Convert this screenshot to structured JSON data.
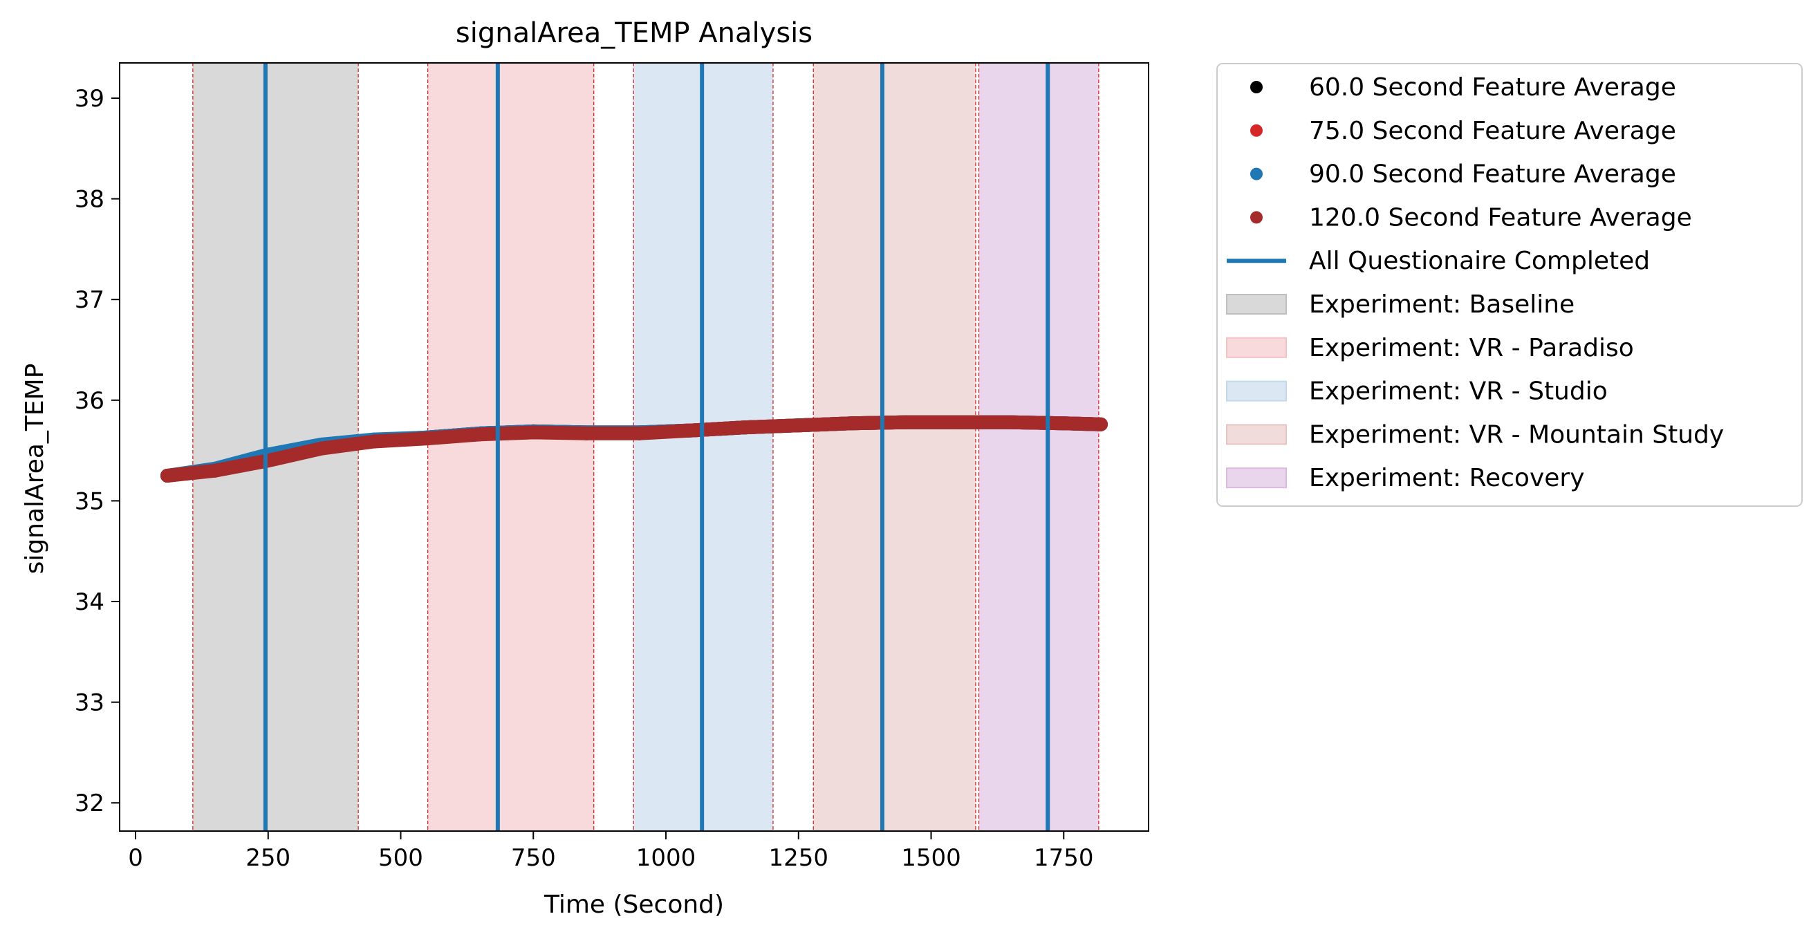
{
  "chart_data": {
    "type": "scatter",
    "title": "signalArea_TEMP Analysis",
    "xlabel": "Time (Second)",
    "ylabel": "signalArea_TEMP",
    "xlim": [
      -30,
      1910
    ],
    "ylim": [
      31.72,
      39.35
    ],
    "x_ticks": [
      0,
      250,
      500,
      750,
      1000,
      1250,
      1500,
      1750
    ],
    "y_ticks": [
      32,
      33,
      34,
      35,
      36,
      37,
      38,
      39
    ],
    "grid": false,
    "legend_position": "outside-right-top",
    "series": [
      {
        "name": "60.0 Second Feature Average",
        "color": "#000000",
        "x": [
          60,
          150,
          250,
          350,
          450,
          550,
          650,
          750,
          850,
          950,
          1050,
          1150,
          1250,
          1350,
          1450,
          1550,
          1650,
          1750,
          1820
        ],
        "y": [
          35.25,
          35.31,
          35.43,
          35.54,
          35.6,
          35.63,
          35.67,
          35.69,
          35.68,
          35.68,
          35.7,
          35.73,
          35.75,
          35.77,
          35.78,
          35.78,
          35.78,
          35.77,
          35.76
        ]
      },
      {
        "name": "75.0 Second Feature Average",
        "color": "#d62728",
        "x": [
          60,
          150,
          250,
          350,
          450,
          550,
          650,
          750,
          850,
          950,
          1050,
          1150,
          1250,
          1350,
          1450,
          1550,
          1650,
          1750,
          1820
        ],
        "y": [
          35.25,
          35.31,
          35.44,
          35.55,
          35.6,
          35.63,
          35.67,
          35.69,
          35.68,
          35.68,
          35.7,
          35.73,
          35.75,
          35.77,
          35.78,
          35.78,
          35.78,
          35.77,
          35.76
        ]
      },
      {
        "name": "90.0 Second Feature Average",
        "color": "#1f77b4",
        "x": [
          60,
          150,
          250,
          350,
          450,
          550,
          650,
          750,
          850,
          950,
          1050,
          1150,
          1250,
          1350,
          1450,
          1550,
          1650,
          1750,
          1820
        ],
        "y": [
          35.25,
          35.32,
          35.46,
          35.56,
          35.61,
          35.63,
          35.67,
          35.69,
          35.68,
          35.68,
          35.7,
          35.73,
          35.75,
          35.77,
          35.78,
          35.78,
          35.78,
          35.77,
          35.76
        ]
      },
      {
        "name": "120.0 Second Feature Average",
        "color": "#a52a2a",
        "x": [
          60,
          150,
          250,
          350,
          450,
          550,
          650,
          750,
          850,
          950,
          1050,
          1150,
          1250,
          1350,
          1450,
          1550,
          1650,
          1750,
          1820
        ],
        "y": [
          35.25,
          35.3,
          35.4,
          35.52,
          35.59,
          35.62,
          35.66,
          35.68,
          35.67,
          35.67,
          35.7,
          35.73,
          35.75,
          35.77,
          35.78,
          35.78,
          35.78,
          35.77,
          35.76
        ]
      }
    ],
    "questionnaire_lines": {
      "name": "All Questionaire Completed",
      "color": "#1f77b4",
      "x": [
        245,
        683,
        1068,
        1408,
        1720
      ]
    },
    "phases": [
      {
        "name": "Experiment: Baseline",
        "start": 108,
        "end": 420,
        "color": "#bfbfbf"
      },
      {
        "name": "Experiment: VR - Paradiso",
        "start": 551,
        "end": 864,
        "color": "#f4c2c5"
      },
      {
        "name": "Experiment: VR - Studio",
        "start": 939,
        "end": 1202,
        "color": "#c3d9ec"
      },
      {
        "name": "Experiment: VR - Mountain Study",
        "start": 1278,
        "end": 1584,
        "color": "#e8c4c4"
      },
      {
        "name": "Experiment: Recovery",
        "start": 1590,
        "end": 1816,
        "color": "#dcbadf"
      }
    ],
    "phase_boundary_color": "#d62728"
  }
}
